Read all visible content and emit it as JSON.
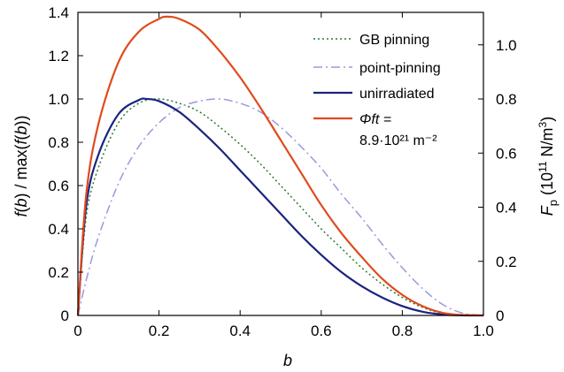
{
  "chart_data": {
    "type": "line",
    "xlabel": "b",
    "ylabel_left": "f(b) / max(f(b))",
    "ylabel_right": "F_p (10^11 N/m^3)",
    "xlim": [
      0,
      1
    ],
    "ylim_left": [
      0,
      1.4
    ],
    "ylim_right": [
      0,
      1.12
    ],
    "x_ticks": [
      "0",
      "0.2",
      "0.4",
      "0.6",
      "0.8",
      "1.0"
    ],
    "y_ticks_left": [
      "0",
      "0.2",
      "0.4",
      "0.6",
      "0.8",
      "1.0",
      "1.2",
      "1.4"
    ],
    "y_ticks_right": [
      "0",
      "0.2",
      "0.4",
      "0.6",
      "0.8",
      "1.0"
    ],
    "grid": false,
    "legend_position": "top-right",
    "series": [
      {
        "name": "GB pinning",
        "style": "dotted",
        "color": "#2a7a2a",
        "axis": "left",
        "x": [
          0,
          0.02,
          0.05,
          0.1,
          0.15,
          0.2,
          0.25,
          0.3,
          0.35,
          0.4,
          0.45,
          0.5,
          0.55,
          0.6,
          0.65,
          0.7,
          0.75,
          0.8,
          0.85,
          0.9,
          0.95,
          1.0
        ],
        "y": [
          0,
          0.45,
          0.68,
          0.89,
          0.98,
          1.0,
          0.98,
          0.94,
          0.87,
          0.79,
          0.7,
          0.6,
          0.5,
          0.4,
          0.31,
          0.22,
          0.145,
          0.083,
          0.037,
          0.009,
          0.001,
          0
        ]
      },
      {
        "name": "point-pinning",
        "style": "dash-dot",
        "color": "#9999dd",
        "axis": "left",
        "x": [
          0,
          0.02,
          0.05,
          0.1,
          0.15,
          0.2,
          0.25,
          0.3,
          0.35,
          0.4,
          0.45,
          0.5,
          0.55,
          0.6,
          0.65,
          0.7,
          0.75,
          0.8,
          0.85,
          0.9,
          0.95,
          1.0
        ],
        "y": [
          0,
          0.16,
          0.36,
          0.61,
          0.78,
          0.89,
          0.96,
          0.99,
          1.0,
          0.98,
          0.94,
          0.87,
          0.78,
          0.68,
          0.56,
          0.45,
          0.33,
          0.22,
          0.124,
          0.05,
          0.01,
          0
        ]
      },
      {
        "name": "unirradiated",
        "style": "solid",
        "color": "#1a237e",
        "axis": "left",
        "x": [
          0,
          0.02,
          0.05,
          0.1,
          0.15,
          0.17,
          0.2,
          0.25,
          0.3,
          0.35,
          0.4,
          0.45,
          0.5,
          0.55,
          0.6,
          0.65,
          0.7,
          0.75,
          0.8,
          0.85,
          0.9,
          0.95,
          1.0
        ],
        "y": [
          0,
          0.5,
          0.74,
          0.93,
          0.995,
          1.0,
          0.99,
          0.94,
          0.86,
          0.77,
          0.67,
          0.57,
          0.47,
          0.37,
          0.28,
          0.2,
          0.135,
          0.083,
          0.043,
          0.017,
          0.004,
          0.0004,
          0
        ]
      },
      {
        "name": "Φ_f t = 8.9·10^21 m^-2",
        "legend_line1": "Φft =",
        "legend_line2": "8.9·10²¹ m⁻²",
        "style": "solid",
        "color": "#e04a1c",
        "axis": "left",
        "x": [
          0,
          0.02,
          0.05,
          0.1,
          0.15,
          0.2,
          0.22,
          0.25,
          0.3,
          0.35,
          0.4,
          0.45,
          0.5,
          0.55,
          0.6,
          0.65,
          0.7,
          0.75,
          0.8,
          0.85,
          0.9,
          0.95,
          1.0
        ],
        "y": [
          0,
          0.55,
          0.88,
          1.17,
          1.31,
          1.37,
          1.38,
          1.37,
          1.32,
          1.22,
          1.1,
          0.96,
          0.81,
          0.66,
          0.51,
          0.38,
          0.27,
          0.17,
          0.095,
          0.043,
          0.012,
          0.002,
          0
        ]
      }
    ]
  }
}
